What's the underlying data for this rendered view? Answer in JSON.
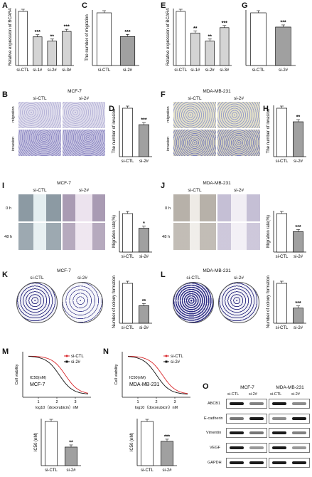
{
  "panels": {
    "A": {
      "letter": "A",
      "ylabel": "Relative expression of BCAR4",
      "cats": [
        "si-CTL",
        "si-1#",
        "si-2#",
        "si-3#"
      ],
      "sig": [
        "",
        "***",
        "**",
        "***"
      ]
    },
    "C": {
      "letter": "C",
      "ylabel": "The number of migration",
      "cats": [
        "si-CTL",
        "si-2#"
      ],
      "sig": [
        "",
        "***"
      ]
    },
    "E": {
      "letter": "E",
      "ylabel": "Relative expression of BCAR4",
      "cats": [
        "si-CTL",
        "si-1#",
        "si-2#",
        "si-3#"
      ],
      "sig": [
        "",
        "**",
        "**",
        "***"
      ]
    },
    "G": {
      "letter": "G",
      "cats": [
        "si-CTL",
        "si-2#"
      ],
      "sig": [
        "",
        "***"
      ]
    },
    "B": {
      "letter": "B",
      "title": "MCF-7",
      "cols": [
        "si-CTL",
        "si-2#"
      ],
      "rows": [
        "migration",
        "invasion"
      ]
    },
    "D": {
      "letter": "D",
      "ylabel": "The number of invasion",
      "cats": [
        "si-CTL",
        "si-2#"
      ],
      "sig": [
        "",
        "***"
      ]
    },
    "F": {
      "letter": "F",
      "title": "MDA-MB-231",
      "cols": [
        "si-CTL",
        "si-2#"
      ],
      "rows": [
        "migration",
        "invasion"
      ]
    },
    "H": {
      "letter": "H",
      "ylabel": "The number of invasion",
      "cats": [
        "si-CTL",
        "si-2#"
      ],
      "sig": [
        "",
        "**"
      ]
    },
    "I": {
      "letter": "I",
      "title": "MCF-7",
      "cols": [
        "si-CTL",
        "si-2#"
      ],
      "rows": [
        "0 h",
        "48 h"
      ]
    },
    "I_bar": {
      "ylabel": "Migration rate(%)",
      "cats": [
        "si-CTL",
        "si-2#"
      ],
      "sig": [
        "",
        "*"
      ]
    },
    "J": {
      "letter": "J",
      "title": "MDA-MB-231",
      "cols": [
        "si-CTL",
        "si-2#"
      ],
      "rows": [
        "0 h",
        "48 h"
      ]
    },
    "J_bar": {
      "ylabel": "Migration rate(%)",
      "cats": [
        "si-CTL",
        "si-2#"
      ],
      "sig": [
        "",
        "***"
      ]
    },
    "K": {
      "letter": "K",
      "title": "MCF-7",
      "cols": [
        "si-CTL",
        "si-2#"
      ]
    },
    "K_bar": {
      "ylabel": "Number of colony formation",
      "cats": [
        "si-CTL",
        "si-2#"
      ],
      "sig": [
        "",
        "**"
      ]
    },
    "L": {
      "letter": "L",
      "title": "MDA-MB-231",
      "cols": [
        "si-CTL",
        "si-2#"
      ]
    },
    "L_bar": {
      "ylabel": "Number of colony formation",
      "cats": [
        "si-CTL",
        "si-2#"
      ],
      "sig": [
        "",
        "***"
      ]
    },
    "M": {
      "letter": "M",
      "ylabel": "Cell viability",
      "xlabel": "log10（doxorubicin）nM",
      "ic50_label": "IC50(nM)",
      "cell": "MCF-7",
      "legend": [
        "si-CTL",
        "si-2#"
      ],
      "xticks": [
        "1",
        "2",
        "3"
      ]
    },
    "M_bar": {
      "ylabel": "IC50 (nM)",
      "cats": [
        "si-CTL",
        "si-2#"
      ],
      "sig": [
        "",
        "**"
      ]
    },
    "N": {
      "letter": "N",
      "ylabel": "Cell viability",
      "xlabel": "log10（doxorubicin）nM",
      "ic50_label": "IC50(nM)",
      "cell": "MDA-MB-231",
      "legend": [
        "si-CTL",
        "si-2#"
      ],
      "xticks": [
        "1",
        "2",
        "3"
      ]
    },
    "N_bar": {
      "ylabel": "IC50 (nM)",
      "cats": [
        "si-CTL",
        "si-2#"
      ],
      "sig": [
        "",
        "***"
      ]
    },
    "O": {
      "letter": "O",
      "groups": [
        "MCF-7",
        "MDA-MB-231"
      ],
      "lanes": [
        "si-CTL",
        "si-2#",
        "si-CTL",
        "si-2#"
      ],
      "proteins": [
        "ABCB1",
        "E-cadherin",
        "Vimentin",
        "VEGF",
        "GAPDH"
      ]
    }
  },
  "colors": {
    "bar_ctl": "#ffffff",
    "bar_si2": "#a0a0a0",
    "bar_si": "#d4d4d4",
    "curve_ctl": "#d9272b",
    "curve_si": "#111111"
  },
  "chart_data": [
    {
      "type": "bar",
      "panel": "A",
      "categories": [
        "si-CTL",
        "si-1#",
        "si-2#",
        "si-3#"
      ],
      "values": [
        1.0,
        0.53,
        0.45,
        0.63
      ],
      "ylim": [
        0,
        1
      ]
    },
    {
      "type": "bar",
      "panel": "C",
      "categories": [
        "si-CTL",
        "si-2#"
      ],
      "values": [
        1.0,
        0.55
      ],
      "ylim": [
        0,
        1
      ]
    },
    {
      "type": "bar",
      "panel": "E",
      "categories": [
        "si-CTL",
        "si-1#",
        "si-2#",
        "si-3#"
      ],
      "values": [
        1.0,
        0.6,
        0.45,
        0.7
      ],
      "ylim": [
        0,
        1
      ]
    },
    {
      "type": "bar",
      "panel": "G",
      "categories": [
        "si-CTL",
        "si-2#"
      ],
      "values": [
        1.0,
        0.73
      ],
      "ylim": [
        0,
        1
      ]
    },
    {
      "type": "bar",
      "panel": "D",
      "categories": [
        "si-CTL",
        "si-2#"
      ],
      "values": [
        1.0,
        0.66
      ],
      "ylim": [
        0,
        1
      ]
    },
    {
      "type": "bar",
      "panel": "H",
      "categories": [
        "si-CTL",
        "si-2#"
      ],
      "values": [
        1.0,
        0.72
      ],
      "ylim": [
        0,
        1
      ]
    },
    {
      "type": "bar",
      "panel": "I",
      "categories": [
        "si-CTL",
        "si-2#"
      ],
      "values": [
        1.0,
        0.62
      ],
      "ylim": [
        0,
        1
      ]
    },
    {
      "type": "bar",
      "panel": "J",
      "categories": [
        "si-CTL",
        "si-2#"
      ],
      "values": [
        1.0,
        0.53
      ],
      "ylim": [
        0,
        1
      ]
    },
    {
      "type": "bar",
      "panel": "K",
      "categories": [
        "si-CTL",
        "si-2#"
      ],
      "values": [
        1.0,
        0.44
      ],
      "ylim": [
        0,
        1
      ]
    },
    {
      "type": "bar",
      "panel": "L",
      "categories": [
        "si-CTL",
        "si-2#"
      ],
      "values": [
        1.0,
        0.38
      ],
      "ylim": [
        0,
        1
      ]
    },
    {
      "type": "bar",
      "panel": "M",
      "categories": [
        "si-CTL",
        "si-2#"
      ],
      "values": [
        1.0,
        0.42
      ],
      "ylim": [
        0,
        1
      ]
    },
    {
      "type": "bar",
      "panel": "N",
      "categories": [
        "si-CTL",
        "si-2#"
      ],
      "values": [
        1.0,
        0.55
      ],
      "ylim": [
        0,
        1
      ]
    }
  ]
}
